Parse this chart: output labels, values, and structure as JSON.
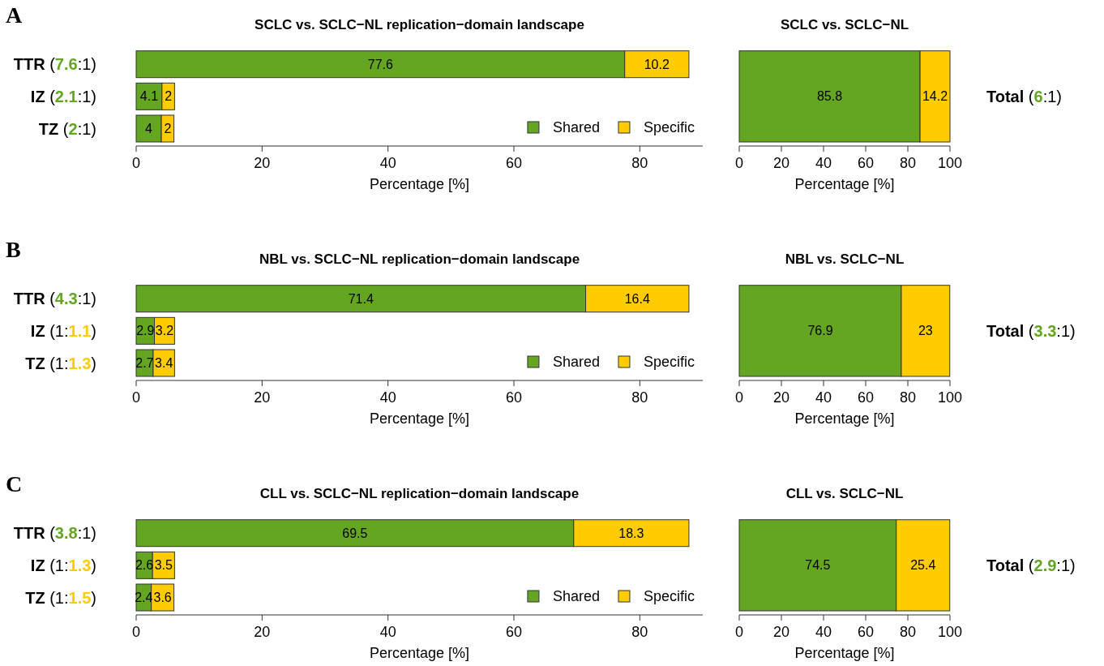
{
  "chart_data": [
    {
      "type": "bar",
      "orientation": "horizontal",
      "stacked": true,
      "title": "SCLC vs. SCLC−NL replication−domain landscape",
      "xlabel": "Percentage [%]",
      "annotations": [
        "A"
      ],
      "categories": [
        "TTR (7.6:1)",
        "IZ (2.1:1)",
        "TZ (2:1)"
      ],
      "series": [
        {
          "name": "Shared",
          "color": "#64a622",
          "values": [
            77.6,
            4.1,
            4
          ]
        },
        {
          "name": "Specific",
          "color": "#ffcc00",
          "values": [
            10.2,
            2,
            2
          ]
        }
      ],
      "xlim": [
        0,
        90
      ],
      "xticks": [
        0,
        20,
        40,
        60,
        80
      ],
      "data_labels": true,
      "legend": "bottom right"
    },
    {
      "type": "bar",
      "orientation": "horizontal",
      "stacked": true,
      "title": "SCLC vs. SCLC−NL",
      "xlabel": "Percentage [%]",
      "categories": [
        "Total (6:1)"
      ],
      "series": [
        {
          "color": "#64a622",
          "values": [
            85.8
          ]
        },
        {
          "color": "#ffcc00",
          "values": [
            14.2
          ]
        }
      ],
      "xlim": [
        0,
        100
      ],
      "xticks": [
        0,
        20,
        40,
        60,
        80,
        100
      ],
      "data_labels": true
    },
    {
      "type": "bar",
      "orientation": "horizontal",
      "stacked": true,
      "title": "NBL vs. SCLC−NL replication−domain landscape",
      "xlabel": "Percentage [%]",
      "annotations": [
        "B"
      ],
      "categories": [
        "TTR (4.3:1)",
        "IZ (1:1.1)",
        "TZ (1:1.3)"
      ],
      "series": [
        {
          "name": "Shared",
          "color": "#64a622",
          "values": [
            71.4,
            2.9,
            2.7
          ]
        },
        {
          "name": "Specific",
          "color": "#ffcc00",
          "values": [
            16.4,
            3.2,
            3.4
          ]
        }
      ],
      "xlim": [
        0,
        90
      ],
      "xticks": [
        0,
        20,
        40,
        60,
        80
      ],
      "data_labels": true,
      "legend": "bottom right"
    },
    {
      "type": "bar",
      "orientation": "horizontal",
      "stacked": true,
      "title": "NBL vs. SCLC−NL",
      "xlabel": "Percentage [%]",
      "categories": [
        "Total (3.3:1)"
      ],
      "series": [
        {
          "color": "#64a622",
          "values": [
            76.9
          ]
        },
        {
          "color": "#ffcc00",
          "values": [
            23
          ]
        }
      ],
      "xlim": [
        0,
        100
      ],
      "xticks": [
        0,
        20,
        40,
        60,
        80,
        100
      ],
      "data_labels": true
    },
    {
      "type": "bar",
      "orientation": "horizontal",
      "stacked": true,
      "title": "CLL vs. SCLC−NL replication−domain landscape",
      "xlabel": "Percentage [%]",
      "annotations": [
        "C"
      ],
      "categories": [
        "TTR (3.8:1)",
        "IZ (1:1.3)",
        "TZ (1:1.5)"
      ],
      "series": [
        {
          "name": "Shared",
          "color": "#64a622",
          "values": [
            69.5,
            2.6,
            2.4
          ]
        },
        {
          "name": "Specific",
          "color": "#ffcc00",
          "values": [
            18.3,
            3.5,
            3.6
          ]
        }
      ],
      "xlim": [
        0,
        90
      ],
      "xticks": [
        0,
        20,
        40,
        60,
        80
      ],
      "data_labels": true,
      "legend": "bottom right"
    },
    {
      "type": "bar",
      "orientation": "horizontal",
      "stacked": true,
      "title": "CLL vs. SCLC−NL",
      "xlabel": "Percentage [%]",
      "categories": [
        "Total (2.9:1)"
      ],
      "series": [
        {
          "color": "#64a622",
          "values": [
            74.5
          ]
        },
        {
          "color": "#ffcc00",
          "values": [
            25.4
          ]
        }
      ],
      "xlim": [
        0,
        100
      ],
      "xticks": [
        0,
        20,
        40,
        60,
        80,
        100
      ],
      "data_labels": true
    }
  ]
}
